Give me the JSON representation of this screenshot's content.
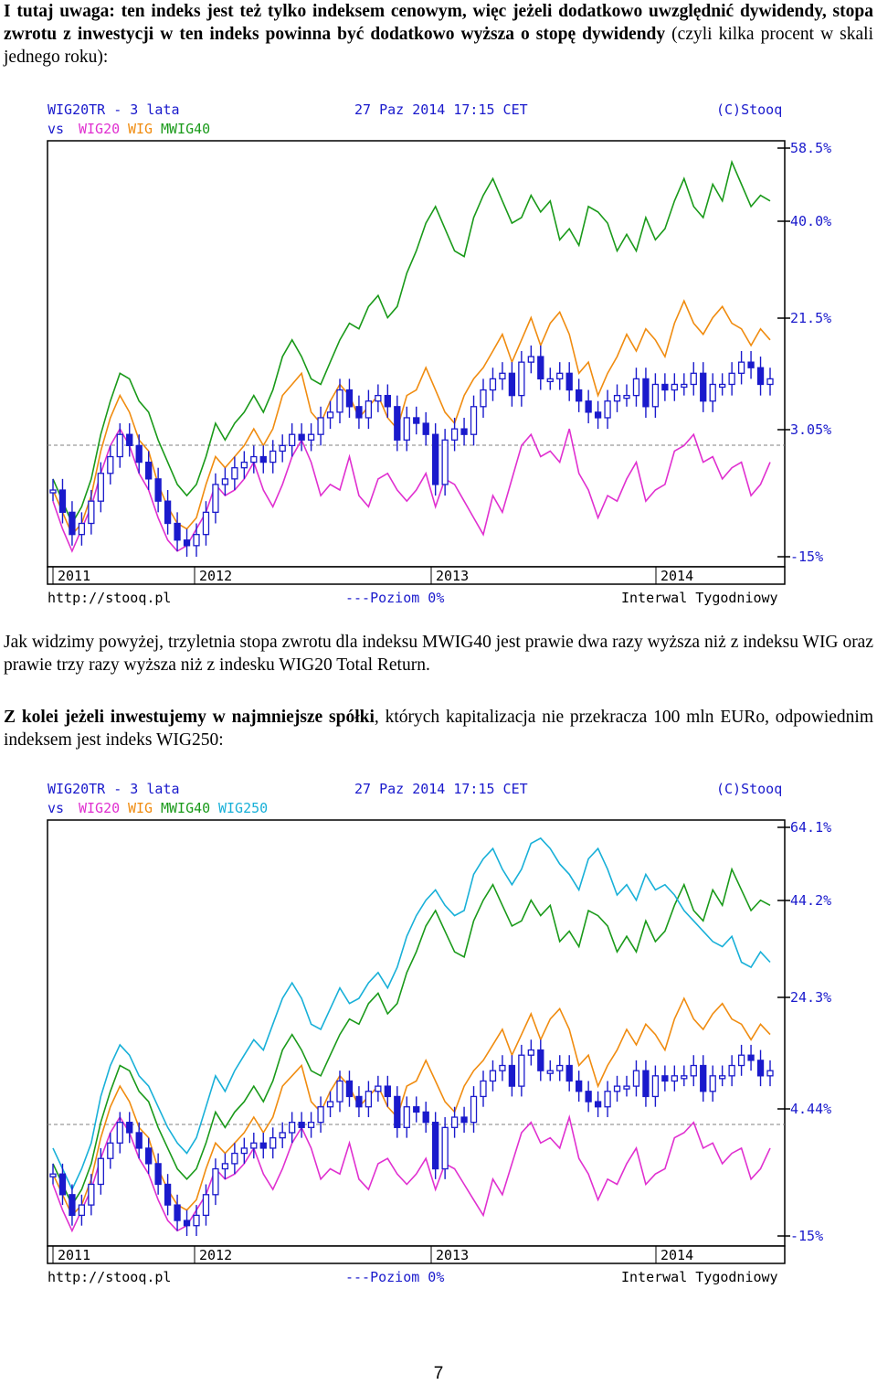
{
  "paragraph1": {
    "bold": "I tutaj uwaga: ten indeks jest też tylko indeksem cenowym, więc jeżeli dodatkowo uwzględnić dywidendy, stopa zwrotu z inwestycji w ten indeks powinna być dodatkowo wyższa o stopę dywidendy",
    "normal": " (czyli kilka procent w skali jednego roku):"
  },
  "paragraph2": "Jak widzimy powyżej, trzyletnia stopa zwrotu dla indeksu MWIG40 jest prawie dwa razy wyższa niż z indeksu WIG oraz prawie trzy razy wyższa niż z indesku WIG20 Total Return.",
  "paragraph3": {
    "bold": "Z kolei jeżeli inwestujemy w najmniejsze spółki",
    "normal": ", których kapitalizacja nie przekracza 100 mln EURo, odpowiednim indeksem jest indeks WIG250:"
  },
  "page_number": "7",
  "chart_data": [
    {
      "type": "line",
      "header": {
        "symbol": "WIG20TR - 3 lata",
        "date": "27 Paz 2014 17:15 CET",
        "copyright": "(C)Stooq",
        "vs": "vs"
      },
      "footer": {
        "url": "http://stooq.pl",
        "baseline": "---Poziom 0%",
        "interval": "Interwal Tygodniowy"
      },
      "x_ticks": [
        "2011",
        "2012",
        "2013",
        "2014"
      ],
      "y_ticks": [
        "58.5%",
        "40.0%",
        "21.5%",
        "3.05%",
        "-15%"
      ],
      "ylim": [
        -15,
        58.5
      ],
      "baseline_level": 0,
      "series": [
        {
          "name": "WIG20",
          "color": "#e030d0",
          "values": [
            -5,
            -10,
            -14,
            -10,
            -6,
            0,
            5,
            8,
            5,
            0,
            -3,
            -8,
            -12,
            -14,
            -13,
            -10,
            -7,
            -2,
            -4,
            -3,
            -1,
            2,
            -3,
            -6,
            -2,
            3,
            6,
            2,
            -4,
            -2,
            -3,
            3,
            -4,
            -6,
            -1,
            0,
            -3,
            -5,
            -3,
            0,
            -6,
            -1,
            -2,
            -5,
            -8,
            -11,
            -4,
            -7,
            -1,
            5,
            7,
            3,
            4,
            2,
            8,
            0,
            -3,
            -8,
            -4,
            -5,
            -1,
            2,
            -5,
            -3,
            -2,
            4,
            5,
            7,
            2,
            3,
            -1,
            1,
            2,
            -4,
            -2,
            2
          ]
        },
        {
          "name": "WIG",
          "color": "#f08c10",
          "values": [
            -3,
            -7,
            -11,
            -9,
            -4,
            4,
            10,
            14,
            11,
            6,
            4,
            -2,
            -6,
            -9,
            -10,
            -8,
            -2,
            3,
            1,
            3,
            5,
            8,
            5,
            8,
            14,
            16,
            18,
            11,
            9,
            13,
            16,
            14,
            10,
            12,
            14,
            10,
            8,
            14,
            15,
            19,
            15,
            11,
            9,
            14,
            17,
            19,
            22,
            25,
            20,
            24,
            28,
            23,
            27,
            29,
            25,
            18,
            20,
            14,
            18,
            21,
            25,
            22,
            26,
            24,
            21,
            27,
            31,
            27,
            25,
            28,
            30,
            27,
            26,
            23,
            26,
            24
          ]
        },
        {
          "name": "MWIG40",
          "color": "#1a9a1a",
          "values": [
            -1,
            -5,
            -9,
            -6,
            -1,
            7,
            13,
            18,
            17,
            13,
            11,
            6,
            2,
            -2,
            -4,
            -2,
            3,
            9,
            6,
            9,
            11,
            14,
            11,
            15,
            21,
            24,
            21,
            17,
            16,
            20,
            24,
            27,
            26,
            30,
            32,
            28,
            30,
            36,
            40,
            45,
            48,
            44,
            40,
            39,
            46,
            50,
            53,
            49,
            45,
            46,
            50,
            47,
            49,
            42,
            44,
            41,
            48,
            47,
            45,
            40,
            43,
            40,
            46,
            42,
            44,
            49,
            53,
            48,
            46,
            52,
            49,
            56,
            52,
            48,
            50,
            49
          ]
        },
        {
          "name": "WIG20TR",
          "color": "#1a1acc",
          "values": [
            -3,
            -7,
            -11,
            -9,
            -5,
            0,
            3,
            7,
            5,
            2,
            -1,
            -5,
            -9,
            -12,
            -13,
            -11,
            -7,
            -2,
            -1,
            1,
            2,
            3,
            2,
            4,
            5,
            7,
            6,
            7,
            10,
            11,
            15,
            12,
            10,
            13,
            14,
            12,
            6,
            10,
            9,
            7,
            -2,
            6,
            8,
            7,
            12,
            15,
            17,
            18,
            14,
            20,
            21,
            17,
            17,
            18,
            15,
            13,
            11,
            10,
            13,
            14,
            14,
            17,
            12,
            16,
            15,
            16,
            16,
            18,
            13,
            16,
            16,
            18,
            20,
            19,
            16,
            17
          ]
        }
      ]
    },
    {
      "type": "line",
      "header": {
        "symbol": "WIG20TR - 3 lata",
        "date": "27 Paz 2014 17:15 CET",
        "copyright": "(C)Stooq",
        "vs": "vs"
      },
      "footer": {
        "url": "http://stooq.pl",
        "baseline": "---Poziom 0%",
        "interval": "Interwal Tygodniowy"
      },
      "x_ticks": [
        "2011",
        "2012",
        "2013",
        "2014"
      ],
      "y_ticks": [
        "64.1%",
        "44.2%",
        "24.3%",
        "4.44%",
        "-15%"
      ],
      "ylim": [
        -15,
        64.1
      ],
      "baseline_level": 0,
      "series": [
        {
          "name": "WIG20",
          "color": "#e030d0",
          "values": [
            -5,
            -10,
            -14,
            -10,
            -6,
            0,
            5,
            8,
            5,
            0,
            -3,
            -8,
            -12,
            -14,
            -13,
            -10,
            -7,
            -2,
            -4,
            -3,
            -1,
            2,
            -3,
            -6,
            -2,
            3,
            6,
            2,
            -4,
            -2,
            -3,
            3,
            -4,
            -6,
            -1,
            0,
            -3,
            -5,
            -3,
            0,
            -6,
            -1,
            -2,
            -5,
            -8,
            -11,
            -4,
            -7,
            -1,
            5,
            7,
            3,
            4,
            2,
            8,
            0,
            -3,
            -8,
            -4,
            -5,
            -1,
            2,
            -5,
            -3,
            -2,
            4,
            5,
            7,
            2,
            3,
            -1,
            1,
            2,
            -4,
            -2,
            2
          ]
        },
        {
          "name": "WIG",
          "color": "#f08c10",
          "values": [
            -3,
            -7,
            -11,
            -9,
            -4,
            4,
            10,
            14,
            11,
            6,
            4,
            -2,
            -6,
            -9,
            -10,
            -8,
            -2,
            3,
            1,
            3,
            5,
            8,
            5,
            8,
            14,
            16,
            18,
            11,
            9,
            13,
            16,
            14,
            10,
            12,
            14,
            10,
            8,
            14,
            15,
            19,
            15,
            11,
            9,
            14,
            17,
            19,
            22,
            25,
            20,
            24,
            28,
            23,
            27,
            29,
            25,
            18,
            20,
            14,
            18,
            21,
            25,
            22,
            26,
            24,
            21,
            27,
            31,
            27,
            25,
            28,
            30,
            27,
            26,
            23,
            26,
            24
          ]
        },
        {
          "name": "MWIG40",
          "color": "#1a9a1a",
          "values": [
            -1,
            -5,
            -9,
            -6,
            -1,
            7,
            13,
            18,
            17,
            13,
            11,
            6,
            2,
            -2,
            -4,
            -2,
            3,
            9,
            6,
            9,
            11,
            14,
            11,
            15,
            21,
            24,
            21,
            17,
            16,
            20,
            24,
            27,
            26,
            30,
            32,
            28,
            30,
            36,
            40,
            45,
            48,
            44,
            40,
            39,
            46,
            50,
            53,
            49,
            45,
            46,
            50,
            47,
            49,
            42,
            44,
            41,
            48,
            47,
            45,
            40,
            43,
            40,
            46,
            42,
            44,
            49,
            53,
            48,
            46,
            52,
            49,
            56,
            52,
            48,
            50,
            49
          ]
        },
        {
          "name": "WIG250",
          "color": "#18b0d8",
          "values": [
            2,
            -2,
            -6,
            -2,
            3,
            12,
            18,
            22,
            20,
            16,
            14,
            10,
            6,
            3,
            1,
            4,
            10,
            16,
            13,
            17,
            20,
            23,
            21,
            26,
            31,
            34,
            31,
            26,
            25,
            29,
            33,
            30,
            31,
            34,
            36,
            33,
            37,
            43,
            47,
            50,
            52,
            49,
            47,
            48,
            55,
            58,
            60,
            56,
            53,
            56,
            61,
            62,
            60,
            57,
            55,
            52,
            58,
            60,
            56,
            51,
            53,
            50,
            55,
            52,
            53,
            51,
            48,
            46,
            44,
            42,
            41,
            43,
            38,
            37,
            40,
            38
          ]
        },
        {
          "name": "WIG20TR",
          "color": "#1a1acc",
          "values": [
            -3,
            -7,
            -11,
            -9,
            -5,
            0,
            3,
            7,
            5,
            2,
            -1,
            -5,
            -9,
            -12,
            -13,
            -11,
            -7,
            -2,
            -1,
            1,
            2,
            3,
            2,
            4,
            5,
            7,
            6,
            7,
            10,
            11,
            15,
            12,
            10,
            13,
            14,
            12,
            6,
            10,
            9,
            7,
            -2,
            6,
            8,
            7,
            12,
            15,
            17,
            18,
            14,
            20,
            21,
            17,
            17,
            18,
            15,
            13,
            11,
            10,
            13,
            14,
            14,
            17,
            12,
            16,
            15,
            16,
            16,
            18,
            13,
            16,
            16,
            18,
            20,
            19,
            16,
            17
          ]
        }
      ]
    }
  ]
}
